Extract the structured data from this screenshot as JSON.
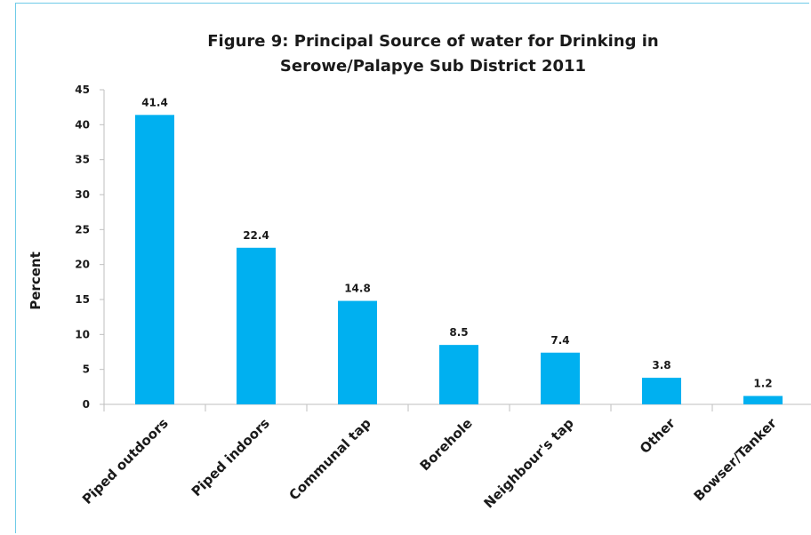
{
  "chart_data": {
    "type": "bar",
    "title_lines": [
      "Figure 9: Principal Source of water for Drinking in",
      "Serowe/Palapye Sub District 2011"
    ],
    "xlabel": "",
    "ylabel": "Percent",
    "ylim": [
      0,
      45
    ],
    "yticks": [
      "0",
      "5",
      "10",
      "15",
      "20",
      "25",
      "30",
      "35",
      "40",
      "45"
    ],
    "grid": false,
    "categories": [
      "Piped outdoors",
      "Piped indoors",
      "Communal tap",
      "Borehole",
      "Neighbour's tap",
      "Other",
      "Bowser/Tanker"
    ],
    "values": [
      41.4,
      22.4,
      14.8,
      8.5,
      7.4,
      3.8,
      1.2
    ],
    "data_labels": [
      "41.4",
      "22.4",
      "14.8",
      "8.5",
      "7.4",
      "3.8",
      "1.2"
    ],
    "bar_color": "#00b0f0"
  }
}
